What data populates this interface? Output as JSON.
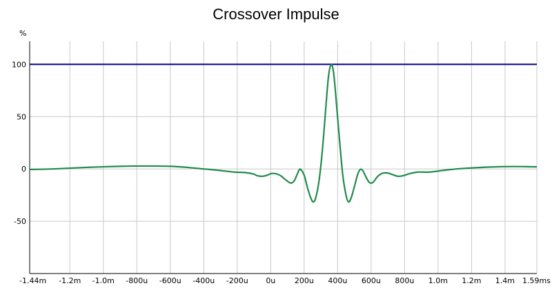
{
  "chart_data": {
    "type": "line",
    "title": "Crossover Impulse",
    "ylabel": "%",
    "xlabel": "",
    "xlim": [
      -1.44,
      1.59
    ],
    "ylim": [
      -100,
      122
    ],
    "grid": true,
    "x_ticks": [
      {
        "value": -1.44,
        "label": "-1.44m"
      },
      {
        "value": -1.2,
        "label": "-1.2m"
      },
      {
        "value": -1.0,
        "label": "-1.0m"
      },
      {
        "value": -0.8,
        "label": "-800u"
      },
      {
        "value": -0.6,
        "label": "-600u"
      },
      {
        "value": -0.4,
        "label": "-400u"
      },
      {
        "value": -0.2,
        "label": "-200u"
      },
      {
        "value": 0.0,
        "label": "0u"
      },
      {
        "value": 0.2,
        "label": "200u"
      },
      {
        "value": 0.4,
        "label": "400u"
      },
      {
        "value": 0.6,
        "label": "600u"
      },
      {
        "value": 0.8,
        "label": "800u"
      },
      {
        "value": 1.0,
        "label": "1.0m"
      },
      {
        "value": 1.2,
        "label": "1.2m"
      },
      {
        "value": 1.4,
        "label": "1.4m"
      },
      {
        "value": 1.59,
        "label": "1.59ms"
      }
    ],
    "y_ticks": [
      {
        "value": 100,
        "label": "100"
      },
      {
        "value": 50,
        "label": "50"
      },
      {
        "value": 0,
        "label": "0"
      },
      {
        "value": -50,
        "label": "-50"
      }
    ],
    "series": [
      {
        "color": "#1f8a4c",
        "points": [
          [
            -1.44,
            -0.5
          ],
          [
            -1.3,
            0.0
          ],
          [
            -1.1,
            1.5
          ],
          [
            -0.9,
            2.5
          ],
          [
            -0.75,
            2.8
          ],
          [
            -0.6,
            2.5
          ],
          [
            -0.5,
            1.5
          ],
          [
            -0.4,
            0.0
          ],
          [
            -0.3,
            -1.5
          ],
          [
            -0.22,
            -3.0
          ],
          [
            -0.15,
            -3.5
          ],
          [
            -0.1,
            -5.0
          ],
          [
            -0.08,
            -6.5
          ],
          [
            -0.05,
            -7.0
          ],
          [
            -0.02,
            -6.0
          ],
          [
            0.0,
            -4.5
          ],
          [
            0.03,
            -4.5
          ],
          [
            0.06,
            -6.5
          ],
          [
            0.09,
            -10.5
          ],
          [
            0.12,
            -13.5
          ],
          [
            0.14,
            -11.5
          ],
          [
            0.16,
            -4.5
          ],
          [
            0.17,
            -1.0
          ],
          [
            0.18,
            -0.5
          ],
          [
            0.2,
            -6.0
          ],
          [
            0.22,
            -18.0
          ],
          [
            0.24,
            -28.0
          ],
          [
            0.255,
            -31.5
          ],
          [
            0.27,
            -27.0
          ],
          [
            0.29,
            -10.0
          ],
          [
            0.31,
            20.0
          ],
          [
            0.33,
            60.0
          ],
          [
            0.345,
            88.0
          ],
          [
            0.36,
            99.5
          ],
          [
            0.375,
            93.0
          ],
          [
            0.39,
            68.0
          ],
          [
            0.41,
            30.0
          ],
          [
            0.43,
            -5.0
          ],
          [
            0.45,
            -25.0
          ],
          [
            0.465,
            -31.5
          ],
          [
            0.48,
            -28.0
          ],
          [
            0.5,
            -17.0
          ],
          [
            0.52,
            -5.0
          ],
          [
            0.535,
            -0.5
          ],
          [
            0.55,
            -1.5
          ],
          [
            0.57,
            -8.0
          ],
          [
            0.59,
            -13.0
          ],
          [
            0.61,
            -13.0
          ],
          [
            0.64,
            -7.0
          ],
          [
            0.67,
            -4.0
          ],
          [
            0.7,
            -4.0
          ],
          [
            0.73,
            -5.5
          ],
          [
            0.76,
            -7.0
          ],
          [
            0.79,
            -6.5
          ],
          [
            0.83,
            -4.5
          ],
          [
            0.88,
            -3.0
          ],
          [
            0.95,
            -3.0
          ],
          [
            1.05,
            -1.0
          ],
          [
            1.15,
            0.5
          ],
          [
            1.3,
            1.8
          ],
          [
            1.45,
            2.3
          ],
          [
            1.59,
            2.0
          ]
        ]
      }
    ],
    "reference_line": {
      "value": 100,
      "color": "#00008b"
    }
  }
}
